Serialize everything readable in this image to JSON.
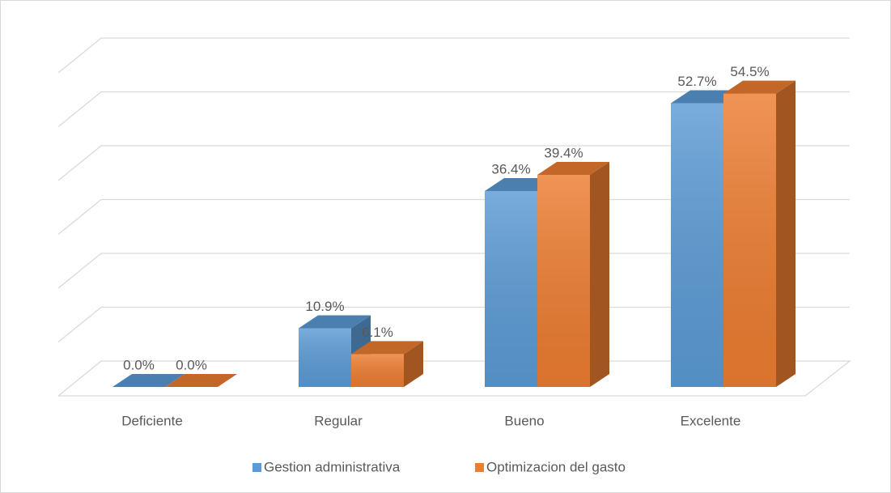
{
  "chart_data": {
    "type": "bar3d",
    "categories": [
      "Deficiente",
      "Regular",
      "Bueno",
      "Excelente"
    ],
    "series": [
      {
        "name": "Gestion administrativa",
        "color": "#5b9bd5",
        "values": [
          0,
          10.9,
          36.4,
          52.7
        ],
        "value_labels": [
          "0.0%",
          "10.9%",
          "36.4%",
          "52.7%"
        ]
      },
      {
        "name": "Optimizacion del gasto",
        "color": "#ed7d31",
        "values": [
          0,
          6.1,
          39.4,
          54.5
        ],
        "value_labels": [
          "0.0%",
          "6.1%",
          "39.4%",
          "54.5%"
        ]
      }
    ],
    "ylim": [
      0,
      60
    ],
    "yticks": [
      0,
      10,
      20,
      30,
      40,
      50,
      60
    ],
    "grid": true,
    "legend": "bottom"
  }
}
